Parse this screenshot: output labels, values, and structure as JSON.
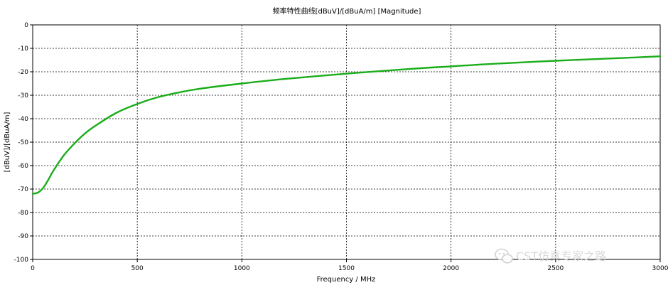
{
  "chart_data": {
    "type": "line",
    "title": "频率特性曲线[dBuV]/[dBuA/m] [Magnitude]",
    "xlabel": "Frequency / MHz",
    "ylabel": "[dBuV]/[dBuA/m]",
    "xlim": [
      0,
      3000
    ],
    "ylim": [
      -100,
      0
    ],
    "xticks": [
      0,
      500,
      1000,
      1500,
      2000,
      2500,
      3000
    ],
    "yticks": [
      0,
      -10,
      -20,
      -30,
      -40,
      -50,
      -60,
      -70,
      -80,
      -90,
      -100
    ],
    "grid": true,
    "legend": "none",
    "series": [
      {
        "color": "#1aad1a",
        "x": [
          0,
          25,
          50,
          75,
          100,
          150,
          200,
          250,
          300,
          400,
          500,
          600,
          700,
          800,
          1000,
          1200,
          1500,
          1800,
          2000,
          2200,
          2500,
          2800,
          3000
        ],
        "values": [
          -72,
          -71.5,
          -69.5,
          -66,
          -62,
          -55.5,
          -50.5,
          -46.3,
          -43,
          -37.5,
          -33.7,
          -30.8,
          -28.8,
          -27.2,
          -25,
          -23.1,
          -20.8,
          -18.8,
          -17.7,
          -16.6,
          -15.3,
          -14.2,
          -13.4
        ]
      }
    ]
  },
  "watermark": {
    "text": "CST仿真专家之路",
    "icon": "wechat-icon"
  }
}
